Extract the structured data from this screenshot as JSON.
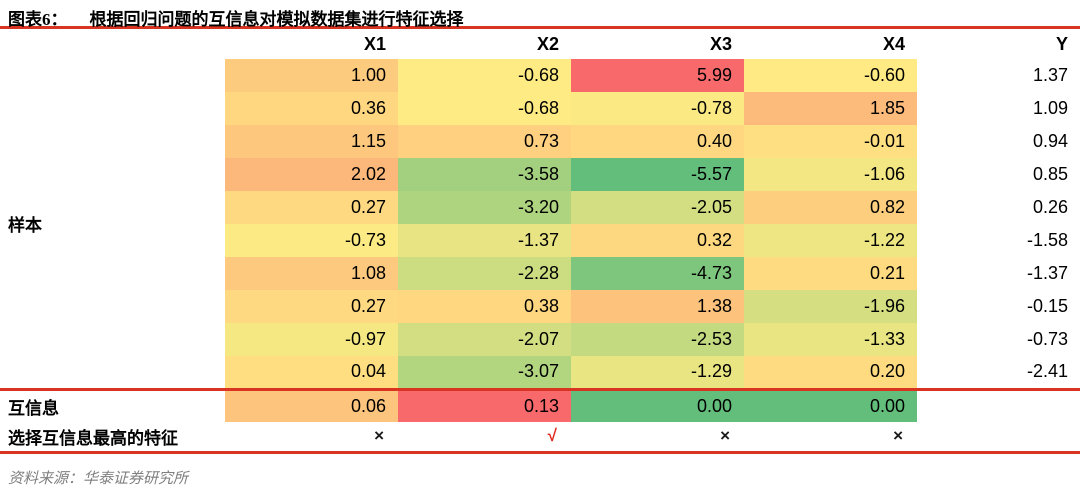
{
  "header": {
    "figure_label": "图表6：",
    "title": "根据回归问题的互信息对模拟数据集进行特征选择"
  },
  "row_labels": {
    "sample": "样本",
    "mutual_info": "互信息",
    "selection": "选择互信息最高的特征"
  },
  "footer": {
    "source": "资料来源：华泰证券研究所"
  },
  "colors": {
    "accent_red": "#D93321",
    "check_red": "#E02A1E",
    "mark_black": "#1a1a1a",
    "source_gray": "#7F7F7F",
    "scale_min_green": "#63BE7B",
    "scale_mid_yellow": "#FFEB84",
    "scale_max_red": "#F8696B"
  },
  "chart_data": {
    "type": "heatmap",
    "title": "根据回归问题的互信息对模拟数据集进行特征选择",
    "columns": [
      "X1",
      "X2",
      "X3",
      "X4",
      "Y"
    ],
    "sample_rows": [
      [
        "1.00",
        "-0.68",
        "5.99",
        "-0.60",
        "1.37"
      ],
      [
        "0.36",
        "-0.68",
        "-0.78",
        "1.85",
        "1.09"
      ],
      [
        "1.15",
        "0.73",
        "0.40",
        "-0.01",
        "0.94"
      ],
      [
        "2.02",
        "-3.58",
        "-5.57",
        "-1.06",
        "0.85"
      ],
      [
        "0.27",
        "-3.20",
        "-2.05",
        "0.82",
        "0.26"
      ],
      [
        "-0.73",
        "-1.37",
        "0.32",
        "-1.22",
        "-1.58"
      ],
      [
        "1.08",
        "-2.28",
        "-4.73",
        "0.21",
        "-1.37"
      ],
      [
        "0.27",
        "0.38",
        "1.38",
        "-1.96",
        "-0.15"
      ],
      [
        "-0.97",
        "-2.07",
        "-2.53",
        "-1.33",
        "-0.73"
      ],
      [
        "0.04",
        "-3.07",
        "-1.29",
        "0.20",
        "-2.41"
      ]
    ],
    "mutual_info": [
      "0.06",
      "0.13",
      "0.00",
      "0.00"
    ],
    "selection": [
      "×",
      "√",
      "×",
      "×"
    ],
    "colormap": {
      "min": "#63BE7B",
      "mid": "#FFEB84",
      "max": "#F8696B"
    },
    "color_scales": {
      "samples": {
        "min": -5.57,
        "mid": -0.64,
        "max": 5.99
      },
      "mutual_info": {
        "min": 0.0,
        "mid": 0.03,
        "max": 0.13
      }
    },
    "legend_position": "none",
    "grid": false
  }
}
